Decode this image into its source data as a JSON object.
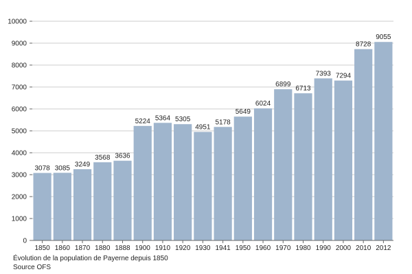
{
  "chart_data": {
    "type": "bar",
    "title": "",
    "xlabel": "",
    "ylabel": "",
    "ylim": [
      0,
      10000
    ],
    "yticks": [
      0,
      1000,
      2000,
      3000,
      4000,
      5000,
      6000,
      7000,
      8000,
      9000,
      10000
    ],
    "grid": true,
    "categories": [
      "1850",
      "1860",
      "1870",
      "1880",
      "1888",
      "1900",
      "1910",
      "1920",
      "1930",
      "1941",
      "1950",
      "1960",
      "1970",
      "1980",
      "1990",
      "2000",
      "2010",
      "2012"
    ],
    "values": [
      3078,
      3085,
      3249,
      3568,
      3636,
      5224,
      5364,
      5305,
      4951,
      5178,
      5649,
      6024,
      6899,
      6713,
      7393,
      7294,
      8728,
      9055
    ],
    "colors": {
      "bar": "#9fb5cd",
      "grid": "#cccccc",
      "axis": "#666666"
    }
  },
  "caption": {
    "line1": "Évolution de la population de Payerne depuis 1850",
    "line2": "Source OFS"
  }
}
